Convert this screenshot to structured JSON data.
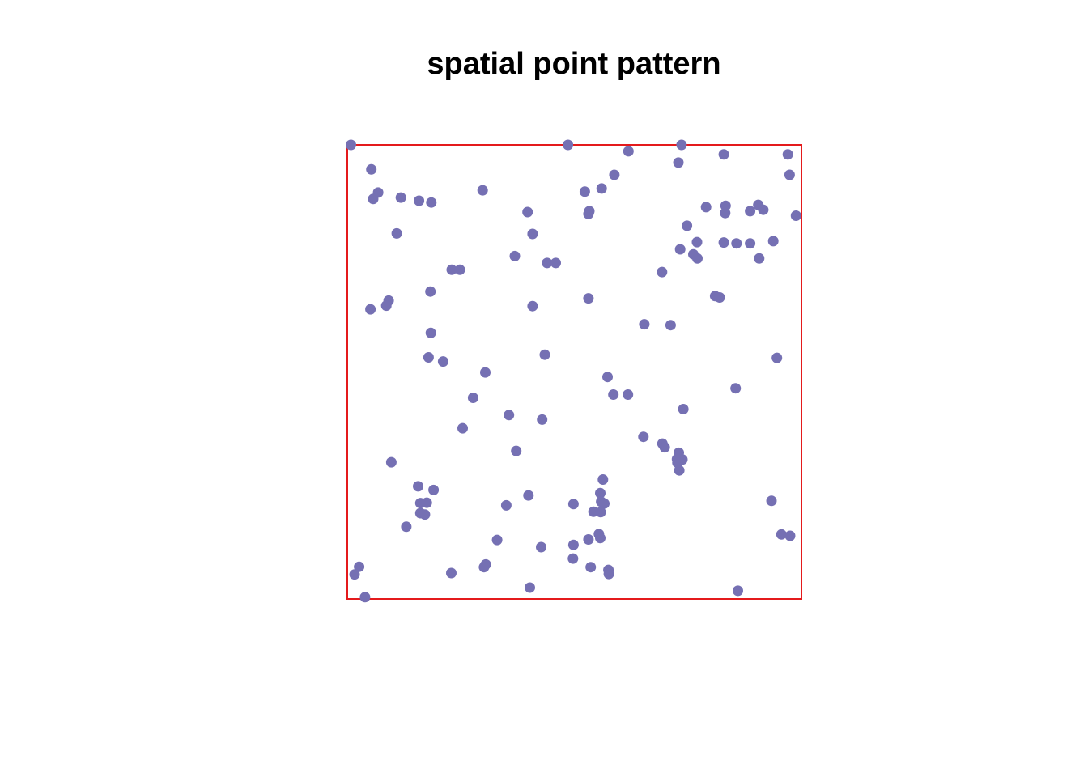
{
  "chart_data": {
    "type": "scatter",
    "title": "spatial point pattern",
    "xlabel": "",
    "ylabel": "",
    "xlim": [
      0,
      1
    ],
    "ylim": [
      0,
      1
    ],
    "grid": false,
    "axes": false,
    "window_color": "#e41a1c",
    "point_color": "#7570b3",
    "points": [
      [
        0.008,
        1.0
      ],
      [
        0.486,
        1.0
      ],
      [
        0.736,
        1.0
      ],
      [
        0.619,
        0.986
      ],
      [
        0.053,
        0.946
      ],
      [
        0.729,
        0.961
      ],
      [
        0.829,
        0.979
      ],
      [
        0.97,
        0.979
      ],
      [
        0.974,
        0.934
      ],
      [
        0.588,
        0.934
      ],
      [
        0.56,
        0.904
      ],
      [
        0.523,
        0.897
      ],
      [
        0.298,
        0.9
      ],
      [
        0.068,
        0.895
      ],
      [
        0.057,
        0.881
      ],
      [
        0.118,
        0.884
      ],
      [
        0.158,
        0.877
      ],
      [
        0.185,
        0.873
      ],
      [
        0.397,
        0.852
      ],
      [
        0.533,
        0.854
      ],
      [
        0.531,
        0.848
      ],
      [
        0.79,
        0.863
      ],
      [
        0.833,
        0.866
      ],
      [
        0.832,
        0.85
      ],
      [
        0.887,
        0.854
      ],
      [
        0.905,
        0.868
      ],
      [
        0.916,
        0.857
      ],
      [
        0.988,
        0.844
      ],
      [
        0.748,
        0.822
      ],
      [
        0.109,
        0.805
      ],
      [
        0.408,
        0.804
      ],
      [
        0.77,
        0.786
      ],
      [
        0.829,
        0.785
      ],
      [
        0.857,
        0.783
      ],
      [
        0.887,
        0.783
      ],
      [
        0.938,
        0.788
      ],
      [
        0.733,
        0.77
      ],
      [
        0.762,
        0.759
      ],
      [
        0.771,
        0.75
      ],
      [
        0.907,
        0.75
      ],
      [
        0.369,
        0.755
      ],
      [
        0.44,
        0.74
      ],
      [
        0.459,
        0.74
      ],
      [
        0.23,
        0.725
      ],
      [
        0.248,
        0.725
      ],
      [
        0.693,
        0.72
      ],
      [
        0.183,
        0.677
      ],
      [
        0.531,
        0.662
      ],
      [
        0.81,
        0.667
      ],
      [
        0.82,
        0.664
      ],
      [
        0.091,
        0.657
      ],
      [
        0.086,
        0.646
      ],
      [
        0.051,
        0.638
      ],
      [
        0.408,
        0.645
      ],
      [
        0.654,
        0.605
      ],
      [
        0.712,
        0.603
      ],
      [
        0.184,
        0.586
      ],
      [
        0.946,
        0.531
      ],
      [
        0.435,
        0.538
      ],
      [
        0.179,
        0.532
      ],
      [
        0.211,
        0.523
      ],
      [
        0.304,
        0.499
      ],
      [
        0.573,
        0.489
      ],
      [
        0.855,
        0.464
      ],
      [
        0.586,
        0.45
      ],
      [
        0.618,
        0.45
      ],
      [
        0.277,
        0.443
      ],
      [
        0.74,
        0.418
      ],
      [
        0.356,
        0.405
      ],
      [
        0.429,
        0.395
      ],
      [
        0.254,
        0.376
      ],
      [
        0.652,
        0.357
      ],
      [
        0.694,
        0.342
      ],
      [
        0.699,
        0.334
      ],
      [
        0.372,
        0.326
      ],
      [
        0.73,
        0.322
      ],
      [
        0.738,
        0.307
      ],
      [
        0.726,
        0.308
      ],
      [
        0.727,
        0.3
      ],
      [
        0.731,
        0.283
      ],
      [
        0.097,
        0.301
      ],
      [
        0.563,
        0.263
      ],
      [
        0.156,
        0.248
      ],
      [
        0.19,
        0.24
      ],
      [
        0.557,
        0.233
      ],
      [
        0.399,
        0.228
      ],
      [
        0.161,
        0.211
      ],
      [
        0.175,
        0.212
      ],
      [
        0.35,
        0.206
      ],
      [
        0.934,
        0.216
      ],
      [
        0.498,
        0.209
      ],
      [
        0.559,
        0.214
      ],
      [
        0.566,
        0.21
      ],
      [
        0.542,
        0.192
      ],
      [
        0.558,
        0.191
      ],
      [
        0.161,
        0.189
      ],
      [
        0.171,
        0.186
      ],
      [
        0.13,
        0.159
      ],
      [
        0.554,
        0.143
      ],
      [
        0.557,
        0.134
      ],
      [
        0.531,
        0.131
      ],
      [
        0.33,
        0.13
      ],
      [
        0.956,
        0.142
      ],
      [
        0.975,
        0.139
      ],
      [
        0.427,
        0.114
      ],
      [
        0.498,
        0.119
      ],
      [
        0.497,
        0.089
      ],
      [
        0.305,
        0.076
      ],
      [
        0.301,
        0.07
      ],
      [
        0.536,
        0.07
      ],
      [
        0.575,
        0.064
      ],
      [
        0.576,
        0.055
      ],
      [
        0.026,
        0.071
      ],
      [
        0.016,
        0.054
      ],
      [
        0.229,
        0.057
      ],
      [
        0.402,
        0.025
      ],
      [
        0.86,
        0.018
      ],
      [
        0.039,
        0.004
      ]
    ]
  }
}
